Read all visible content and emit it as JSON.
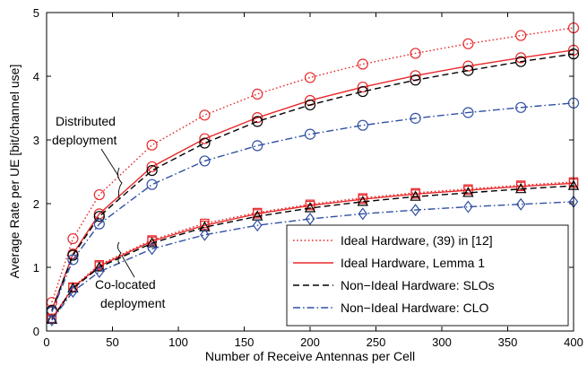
{
  "chart_data": {
    "type": "line",
    "xlabel": "Number of Receive Antennas per Cell",
    "ylabel": "Average Rate per UE [bit/channel use]",
    "xlim": [
      0,
      400
    ],
    "ylim": [
      0,
      5
    ],
    "x_ticks": [
      0,
      50,
      100,
      150,
      200,
      250,
      300,
      350,
      400
    ],
    "y_ticks": [
      0,
      1,
      2,
      3,
      4,
      5
    ],
    "x_tick_labels": [
      "0",
      "50",
      "100",
      "150",
      "200",
      "250",
      "300",
      "350",
      "400"
    ],
    "y_tick_labels": [
      "0",
      "1",
      "2",
      "3",
      "4",
      "5"
    ],
    "grid": false,
    "legend_placement": "bottom-right",
    "legend": [
      {
        "label": "Ideal Hardware, (39) in [12]",
        "color": "#e8282a",
        "dash": "dotted"
      },
      {
        "label": "Ideal Hardware, Lemma 1",
        "color": "#e8282a",
        "dash": "solid"
      },
      {
        "label": "Non−Ideal Hardware: SLOs",
        "color": "#000000",
        "dash": "dashed"
      },
      {
        "label": "Non−Ideal Hardware: CLO",
        "color": "#2f4fa2",
        "dash": "dashdot"
      }
    ],
    "annotations": {
      "distributed": [
        "Distributed",
        "deployment"
      ],
      "colocated": [
        "Co-located",
        "deployment"
      ]
    },
    "series": [
      {
        "group": "distributed",
        "legend_index": 0,
        "color": "#e8282a",
        "dash": "dotted",
        "marker": "circle",
        "x": [
          4,
          20,
          40,
          80,
          120,
          160,
          200,
          240,
          280,
          320,
          360,
          400
        ],
        "y": [
          0.45,
          1.45,
          2.14,
          2.92,
          3.39,
          3.72,
          3.98,
          4.19,
          4.36,
          4.51,
          4.64,
          4.76
        ]
      },
      {
        "group": "distributed",
        "legend_index": 1,
        "color": "#e8282a",
        "dash": "solid",
        "marker": "circle",
        "x": [
          4,
          20,
          40,
          80,
          120,
          160,
          200,
          240,
          280,
          320,
          360,
          400
        ],
        "y": [
          0.33,
          1.21,
          1.84,
          2.58,
          3.02,
          3.35,
          3.62,
          3.83,
          4.01,
          4.16,
          4.29,
          4.41
        ]
      },
      {
        "group": "distributed",
        "legend_index": 2,
        "color": "#000000",
        "dash": "dashed",
        "marker": "circle",
        "x": [
          4,
          20,
          40,
          80,
          120,
          160,
          200,
          240,
          280,
          320,
          360,
          400
        ],
        "y": [
          0.32,
          1.19,
          1.8,
          2.52,
          2.95,
          3.29,
          3.55,
          3.76,
          3.94,
          4.09,
          4.23,
          4.35
        ]
      },
      {
        "group": "distributed",
        "legend_index": 3,
        "color": "#2f4fa2",
        "dash": "dashdot",
        "marker": "circle",
        "x": [
          4,
          20,
          40,
          80,
          120,
          160,
          200,
          240,
          280,
          320,
          360,
          400
        ],
        "y": [
          0.3,
          1.12,
          1.68,
          2.3,
          2.67,
          2.91,
          3.09,
          3.23,
          3.34,
          3.43,
          3.51,
          3.58
        ]
      },
      {
        "group": "colocated",
        "legend_index": 0,
        "color": "#e8282a",
        "dash": "dotted",
        "marker": "square",
        "x": [
          4,
          20,
          40,
          80,
          120,
          160,
          200,
          240,
          280,
          320,
          360,
          400
        ],
        "y": [
          0.2,
          0.69,
          1.04,
          1.43,
          1.69,
          1.86,
          1.99,
          2.09,
          2.17,
          2.23,
          2.29,
          2.34
        ]
      },
      {
        "group": "colocated",
        "legend_index": 1,
        "color": "#e8282a",
        "dash": "solid",
        "marker": "square",
        "x": [
          4,
          20,
          40,
          80,
          120,
          160,
          200,
          240,
          280,
          320,
          360,
          400
        ],
        "y": [
          0.19,
          0.68,
          1.02,
          1.41,
          1.66,
          1.84,
          1.97,
          2.07,
          2.15,
          2.21,
          2.27,
          2.32
        ]
      },
      {
        "group": "colocated",
        "legend_index": 2,
        "color": "#000000",
        "dash": "dashed",
        "marker": "triangle",
        "x": [
          4,
          20,
          40,
          80,
          120,
          160,
          200,
          240,
          280,
          320,
          360,
          400
        ],
        "y": [
          0.18,
          0.67,
          1.0,
          1.38,
          1.63,
          1.8,
          1.93,
          2.03,
          2.11,
          2.17,
          2.23,
          2.28
        ]
      },
      {
        "group": "colocated",
        "legend_index": 3,
        "color": "#2f4fa2",
        "dash": "dashdot",
        "marker": "diamond",
        "x": [
          4,
          20,
          40,
          80,
          120,
          160,
          200,
          240,
          280,
          320,
          360,
          400
        ],
        "y": [
          0.17,
          0.62,
          0.93,
          1.29,
          1.51,
          1.66,
          1.76,
          1.84,
          1.9,
          1.95,
          1.99,
          2.03
        ]
      }
    ]
  }
}
